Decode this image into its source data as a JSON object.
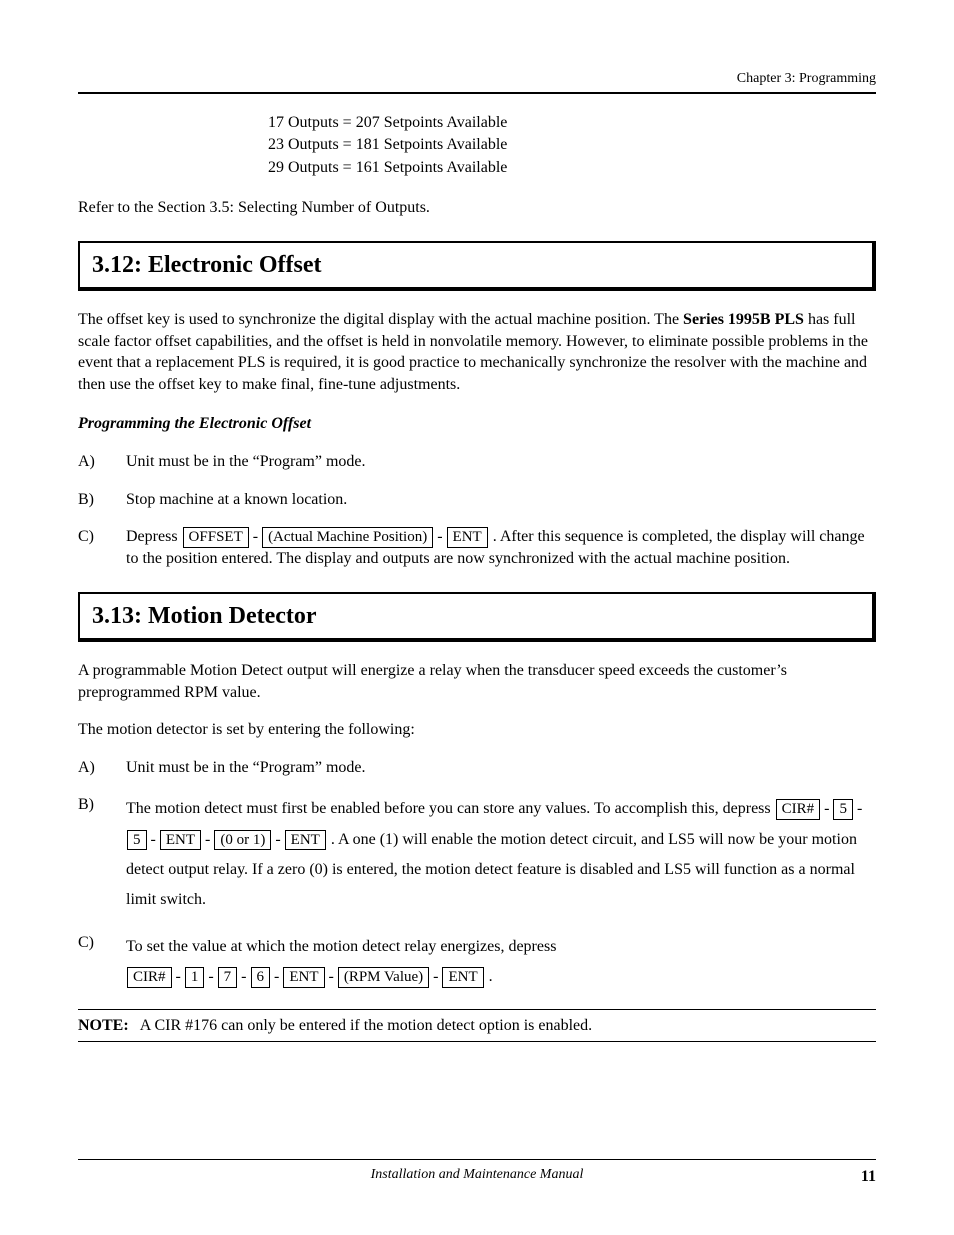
{
  "header": {
    "chapter": "Chapter 3: Programming"
  },
  "setpoints": {
    "r1": "17 Outputs  =  207 Setpoints Available",
    "r2": "23 Outputs  =  181 Setpoints Available",
    "r3": "29 Outputs  =  161 Setpoints Available"
  },
  "refer_line": "Refer to the Section 3.5: Selecting Number of Outputs.",
  "s312": {
    "heading": "3.12: Electronic Offset",
    "p1a": "The offset key is used to synchronize the digital display with the actual machine position.  The ",
    "p1b": "Series 1995B PLS",
    "p1c": " has full scale factor offset capabilities, and the offset is held in nonvolatile memory.  However, to eliminate possible problems in the event that a replacement PLS is required, it is good practice to mechanically synchronize the resolver with the machine and then use the offset key to make final, fine-tune adjustments.",
    "subhead": "Programming the Electronic Offset",
    "a": "Unit must be in the “Program” mode.",
    "b": "Stop machine at a known location.",
    "c_pre": "Depress  ",
    "c_k1": "OFFSET",
    "c_k2": "(Actual Machine Position)",
    "c_k3": "ENT",
    "c_post": " .  After this sequence is completed, the display will change to the position entered.  The display and outputs are now synchronized with the actual machine position."
  },
  "s313": {
    "heading": "3.13: Motion Detector",
    "p1": "A programmable Motion Detect output will energize a relay when the transducer speed exceeds the customer’s preprogrammed RPM value.",
    "p2": "The motion detector is set by entering the following:",
    "a": "Unit must be in the “Program” mode.",
    "b_pre": "The motion detect must first be enabled before you can store any values.  To accomplish this, depress  ",
    "b_k1": "CIR#",
    "b_k2": "5",
    "b_k3": "5",
    "b_k4": "ENT",
    "b_k5": "(0 or 1)",
    "b_k6": "ENT",
    "b_post": " .  A one (1) will enable the motion detect circuit, and LS5 will now be your motion detect output relay.  If a zero (0) is entered, the motion detect feature is disabled and LS5 will function as a normal limit switch.",
    "c_pre": "To set the value at which the motion detect relay energizes, depress",
    "c_k1": "CIR#",
    "c_k2": "1",
    "c_k3": "7",
    "c_k4": "6",
    "c_k5": "ENT",
    "c_k6": "(RPM Value)",
    "c_k7": "ENT",
    "c_post": " ."
  },
  "note": {
    "label": "NOTE:",
    "text": "A CIR #176 can only be entered if the motion detect option is enabled."
  },
  "footer": {
    "title": "Installation and Maintenance Manual",
    "page": "11"
  }
}
